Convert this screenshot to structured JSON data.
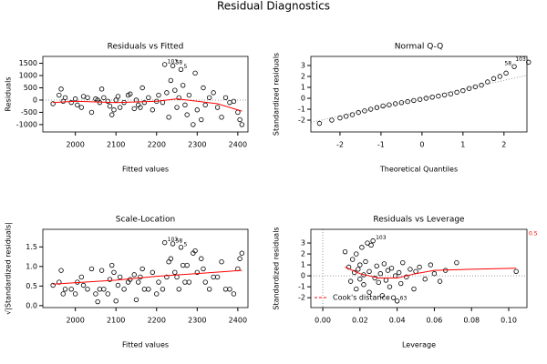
{
  "title": "Residual Diagnostics",
  "chart_data": [
    {
      "type": "scatter",
      "title": "Residuals vs Fitted",
      "x_label": "Fitted values",
      "y_label": "Residuals",
      "xlim": [
        1920,
        2425
      ],
      "ylim": [
        -1300,
        1780
      ],
      "xticks": [
        2000,
        2100,
        2200,
        2300,
        2400
      ],
      "yticks": [
        -1000,
        -500,
        0,
        500,
        1000,
        1500
      ],
      "hline": 0,
      "color": "#000000",
      "x": [
        1945,
        1960,
        1965,
        1970,
        1975,
        1990,
        2000,
        2005,
        2015,
        2020,
        2030,
        2040,
        2050,
        2055,
        2060,
        2065,
        2070,
        2080,
        2085,
        2090,
        2095,
        2100,
        2105,
        2110,
        2120,
        2130,
        2135,
        2145,
        2150,
        2155,
        2160,
        2165,
        2170,
        2180,
        2190,
        2200,
        2205,
        2215,
        2220,
        2225,
        2230,
        2235,
        2240,
        2245,
        2250,
        2255,
        2260,
        2265,
        2270,
        2275,
        2280,
        2290,
        2295,
        2300,
        2310,
        2315,
        2320,
        2330,
        2340,
        2350,
        2360,
        2370,
        2380,
        2390,
        2400,
        2405,
        2410
      ],
      "values": [
        -150,
        200,
        450,
        -50,
        100,
        -100,
        50,
        -200,
        -300,
        150,
        100,
        -500,
        50,
        0,
        -100,
        450,
        100,
        -50,
        -250,
        -600,
        -400,
        0,
        150,
        -300,
        -100,
        200,
        250,
        -350,
        0,
        -200,
        -300,
        500,
        -100,
        100,
        -400,
        -50,
        200,
        -100,
        1450,
        300,
        -700,
        800,
        1400,
        400,
        -300,
        100,
        1250,
        600,
        -200,
        -600,
        200,
        -1000,
        1100,
        -400,
        -800,
        500,
        -200,
        100,
        300,
        -300,
        -700,
        100,
        -100,
        -50,
        -500,
        -800,
        -1000
      ],
      "smooth": {
        "color": "#ff0000",
        "x": [
          1945,
          2000,
          2100,
          2200,
          2250,
          2300,
          2350,
          2410
        ],
        "y": [
          -100,
          -50,
          -100,
          -50,
          50,
          -50,
          -150,
          -450
        ]
      },
      "point_labels": [
        {
          "text": "103",
          "x": 2220,
          "y": 1450
        },
        {
          "text": "58",
          "x": 2240,
          "y": 1400
        },
        {
          "text": "5",
          "x": 2260,
          "y": 1250
        }
      ]
    },
    {
      "type": "scatter",
      "title": "Normal Q-Q",
      "x_label": "Theoretical Quantiles",
      "y_label": "Standardized residuals",
      "xlim": [
        -2.71,
        2.56
      ],
      "ylim": [
        -3.08,
        3.83
      ],
      "xticks": [
        -2,
        -1,
        0,
        1,
        2
      ],
      "yticks": [
        -2,
        -1,
        0,
        1,
        2,
        3
      ],
      "color": "#000000",
      "x": [
        -2.5,
        -2.2,
        -2.0,
        -1.85,
        -1.7,
        -1.55,
        -1.4,
        -1.25,
        -1.1,
        -0.95,
        -0.8,
        -0.65,
        -0.5,
        -0.35,
        -0.2,
        -0.05,
        0.1,
        0.25,
        0.4,
        0.55,
        0.7,
        0.85,
        1.0,
        1.15,
        1.3,
        1.45,
        1.6,
        1.75,
        1.9,
        2.05,
        2.25,
        2.6
      ],
      "values": [
        -2.3,
        -2.0,
        -1.8,
        -1.65,
        -1.5,
        -1.3,
        -1.15,
        -1.0,
        -0.85,
        -0.7,
        -0.6,
        -0.5,
        -0.4,
        -0.3,
        -0.2,
        -0.1,
        0.0,
        0.1,
        0.2,
        0.3,
        0.4,
        0.55,
        0.7,
        0.9,
        1.05,
        1.2,
        1.5,
        1.8,
        2.0,
        2.3,
        2.9,
        3.3
      ],
      "qq_line": {
        "color": "#999999",
        "x": [
          -2.71,
          2.56
        ],
        "y": [
          -2.2,
          2.1
        ]
      },
      "point_labels": [
        {
          "text": "103",
          "x": 2.6,
          "y": 3.3
        },
        {
          "text": "58",
          "x": 2.25,
          "y": 2.9
        }
      ]
    },
    {
      "type": "scatter",
      "title": "Scale-Location",
      "x_label": "Fitted values",
      "y_label": "√|Standardized residuals|",
      "xlim": [
        1920,
        2425
      ],
      "ylim": [
        -0.05,
        1.95
      ],
      "xticks": [
        2000,
        2100,
        2200,
        2300,
        2400
      ],
      "yticks": [
        {
          "value": 0,
          "label": "0.0"
        },
        {
          "value": 0.5,
          "label": "0.5"
        },
        {
          "value": 1,
          "label": "1.0"
        },
        {
          "value": 1.5,
          "label": "1.5"
        }
      ],
      "color": "#000000",
      "x": [
        1945,
        1960,
        1965,
        1970,
        1975,
        1990,
        2000,
        2005,
        2015,
        2020,
        2030,
        2040,
        2050,
        2055,
        2060,
        2065,
        2070,
        2080,
        2085,
        2090,
        2095,
        2100,
        2105,
        2110,
        2120,
        2130,
        2135,
        2145,
        2150,
        2155,
        2160,
        2165,
        2170,
        2180,
        2190,
        2200,
        2205,
        2215,
        2220,
        2225,
        2230,
        2235,
        2240,
        2245,
        2250,
        2255,
        2260,
        2265,
        2270,
        2275,
        2280,
        2290,
        2295,
        2300,
        2310,
        2315,
        2320,
        2330,
        2340,
        2350,
        2360,
        2370,
        2380,
        2390,
        2400,
        2405,
        2410
      ],
      "values": [
        0.52,
        0.6,
        0.9,
        0.3,
        0.42,
        0.42,
        0.3,
        0.6,
        0.73,
        0.52,
        0.42,
        0.94,
        0.3,
        0.1,
        0.42,
        0.9,
        0.42,
        0.3,
        0.67,
        1.03,
        0.85,
        0.12,
        0.52,
        0.73,
        0.42,
        0.6,
        0.67,
        0.79,
        0.15,
        0.6,
        0.73,
        0.94,
        0.42,
        0.42,
        0.85,
        0.3,
        0.6,
        0.42,
        1.61,
        0.73,
        1.12,
        1.2,
        1.58,
        0.85,
        0.73,
        0.42,
        1.49,
        1.03,
        0.6,
        1.03,
        0.6,
        1.34,
        1.4,
        0.85,
        1.2,
        0.94,
        0.6,
        0.42,
        0.73,
        0.73,
        1.12,
        0.42,
        0.42,
        0.3,
        0.94,
        1.2,
        1.34
      ],
      "smooth": {
        "color": "#ff0000",
        "x": [
          1945,
          2100,
          2200,
          2300,
          2410
        ],
        "y": [
          0.55,
          0.65,
          0.75,
          0.82,
          0.9
        ]
      },
      "point_labels": [
        {
          "text": "103",
          "x": 2220,
          "y": 1.61
        },
        {
          "text": "58",
          "x": 2240,
          "y": 1.58
        },
        {
          "text": "5",
          "x": 2260,
          "y": 1.49
        }
      ]
    },
    {
      "type": "scatter",
      "title": "Residuals vs Leverage",
      "x_label": "Leverage",
      "y_label": "Standardized residuals",
      "xlim": [
        -0.0064,
        0.1098
      ],
      "ylim": [
        -2.9,
        4.25
      ],
      "xticks": [
        {
          "value": 0,
          "label": "0.00"
        },
        {
          "value": 0.02,
          "label": "0.02"
        },
        {
          "value": 0.04,
          "label": "0.04"
        },
        {
          "value": 0.06,
          "label": "0.06"
        },
        {
          "value": 0.08,
          "label": "0.08"
        },
        {
          "value": 0.1,
          "label": "0.10"
        }
      ],
      "yticks": [
        -2,
        -1,
        0,
        1,
        2,
        3
      ],
      "hline": 0,
      "vline": 0,
      "color": "#000000",
      "x": [
        0.012,
        0.014,
        0.015,
        0.016,
        0.017,
        0.018,
        0.018,
        0.019,
        0.02,
        0.02,
        0.021,
        0.022,
        0.022,
        0.023,
        0.024,
        0.025,
        0.025,
        0.026,
        0.027,
        0.028,
        0.029,
        0.03,
        0.031,
        0.032,
        0.033,
        0.034,
        0.035,
        0.036,
        0.037,
        0.038,
        0.039,
        0.04,
        0.041,
        0.042,
        0.043,
        0.045,
        0.047,
        0.049,
        0.05,
        0.052,
        0.055,
        0.058,
        0.06,
        0.063,
        0.066,
        0.072,
        0.104
      ],
      "values": [
        2.2,
        0.8,
        -0.5,
        1.5,
        0.3,
        -1.2,
        2.0,
        0.6,
        1.0,
        -0.3,
        2.6,
        0.1,
        -0.8,
        1.3,
        3.0,
        0.4,
        -1.5,
        2.8,
        3.2,
        -0.2,
        0.9,
        -0.6,
        0.2,
        -1.8,
        1.1,
        -0.4,
        0.5,
        -1.0,
        0.7,
        -2.0,
        0.0,
        -2.3,
        0.3,
        -0.7,
        1.2,
        -0.1,
        0.6,
        -1.2,
        0.4,
        0.8,
        -0.3,
        1.0,
        0.2,
        -0.5,
        0.5,
        1.2,
        0.4
      ],
      "smooth": {
        "color": "#ff0000",
        "x": [
          0.012,
          0.02,
          0.03,
          0.04,
          0.05,
          0.06,
          0.08,
          0.104
        ],
        "y": [
          0.8,
          0.2,
          -0.2,
          -0.2,
          0.2,
          0.5,
          0.6,
          0.7
        ]
      },
      "point_labels": [
        {
          "text": "103",
          "x": 0.027,
          "y": 3.2
        },
        {
          "text": "63",
          "x": 0.04,
          "y": -2.3
        }
      ],
      "cook_levels": [
        0.5
      ],
      "cook_legend": "Cook's distance",
      "cook_color": "#ff0000"
    }
  ]
}
